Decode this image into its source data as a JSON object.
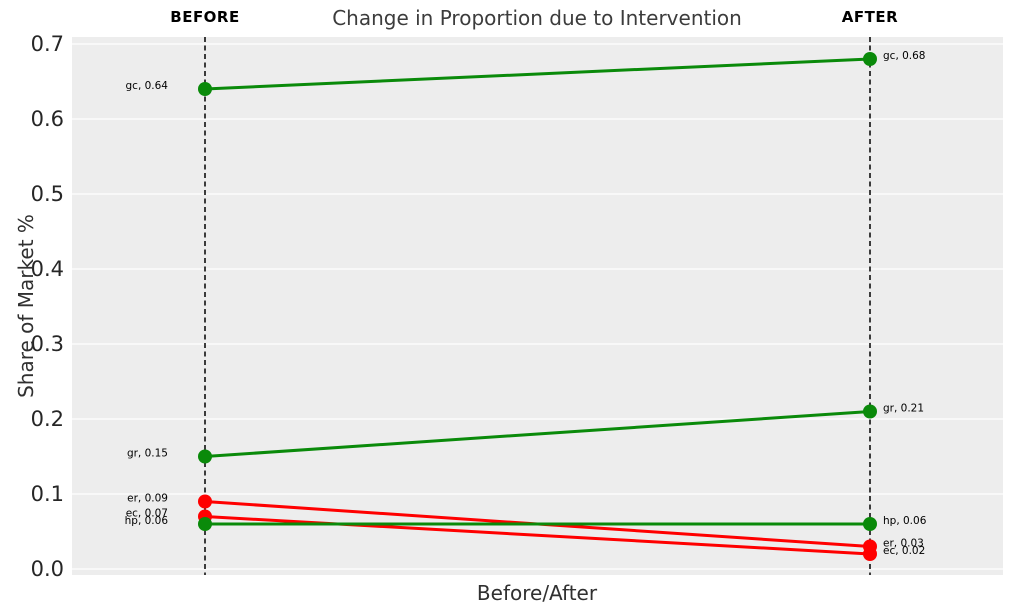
{
  "chart_data": {
    "type": "line",
    "subtype": "slopegraph",
    "title": "Change in Proportion due to Intervention",
    "xlabel": "Before/After",
    "ylabel": "Share of Market %",
    "x_categories": [
      "BEFORE",
      "AFTER"
    ],
    "ylim": [
      0.0,
      0.7
    ],
    "ytick_values": [
      0.0,
      0.1,
      0.2,
      0.3,
      0.4,
      0.5,
      0.6,
      0.7
    ],
    "ytick_labels": [
      "0.0",
      "0.1",
      "0.2",
      "0.3",
      "0.4",
      "0.5",
      "0.6",
      "0.7"
    ],
    "grid": true,
    "legend": "none",
    "colors": {
      "plot_background": "#ededed",
      "figure_background": "#ffffff",
      "grid_line": "#ffffff",
      "guide_line": "#000000",
      "increase_series": "#0a8a0a",
      "decrease_series": "#ff0000",
      "annotation_text": "#000000"
    },
    "guide_lines": {
      "style": "dashed",
      "x_categories": [
        "BEFORE",
        "AFTER"
      ]
    },
    "series": [
      {
        "name": "gc",
        "color": "#0a8a0a",
        "values": [
          0.64,
          0.68
        ],
        "label_before": "gc, 0.64",
        "label_after": "gc, 0.68"
      },
      {
        "name": "gr",
        "color": "#0a8a0a",
        "values": [
          0.15,
          0.21
        ],
        "label_before": "gr, 0.15",
        "label_after": "gr, 0.21"
      },
      {
        "name": "er",
        "color": "#ff0000",
        "values": [
          0.09,
          0.03
        ],
        "label_before": "er, 0.09",
        "label_after": "er, 0.03"
      },
      {
        "name": "ec",
        "color": "#ff0000",
        "values": [
          0.07,
          0.02
        ],
        "label_before": "ec, 0.07",
        "label_after": "ec, 0.02"
      },
      {
        "name": "hp",
        "color": "#0a8a0a",
        "values": [
          0.06,
          0.06
        ],
        "label_before": "hp, 0.06",
        "label_after": "hp, 0.06"
      }
    ]
  }
}
